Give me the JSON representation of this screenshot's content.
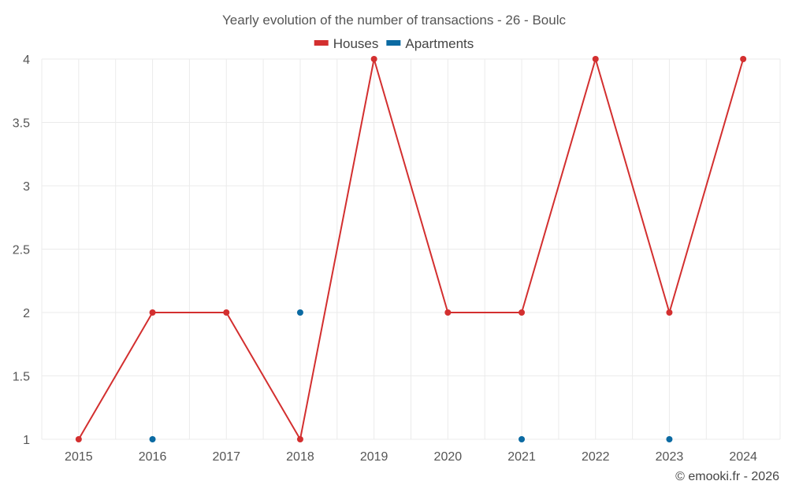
{
  "chart_data": {
    "type": "line",
    "title": "Yearly evolution of the number of transactions - 26 - Boulc",
    "x": [
      "2015",
      "2016",
      "2017",
      "2018",
      "2019",
      "2020",
      "2021",
      "2022",
      "2023",
      "2024"
    ],
    "yticks": [
      "1",
      "1.5",
      "2",
      "2.5",
      "3",
      "3.5",
      "4"
    ],
    "ylim": [
      1,
      4
    ],
    "grid": true,
    "legend_position": "top-center",
    "series": [
      {
        "name": "Houses",
        "color": "#d32f2f",
        "values": [
          1,
          2,
          2,
          1,
          4,
          2,
          2,
          4,
          2,
          4
        ],
        "line": true
      },
      {
        "name": "Apartments",
        "color": "#0b6aa2",
        "values": [
          null,
          1,
          null,
          2,
          null,
          null,
          1,
          null,
          1,
          null
        ],
        "line": false
      }
    ]
  },
  "credit": "© emooki.fr - 2026"
}
